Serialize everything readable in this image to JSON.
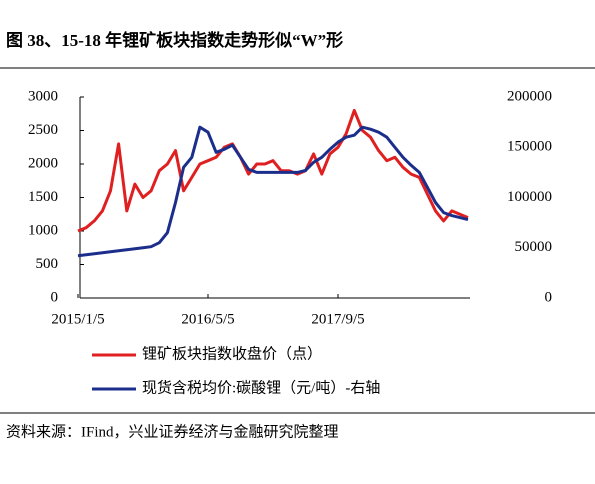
{
  "chart_data": {
    "type": "line",
    "title": "图 38、15-18 年锂矿板块指数走势形似“W”形",
    "source": "资料来源：IFind，兴业证券经济与金融研究院整理",
    "categories": [
      "2015/1/5",
      null,
      null,
      null,
      null,
      null,
      null,
      null,
      null,
      null,
      null,
      null,
      null,
      null,
      null,
      null,
      "2016/5/5",
      null,
      null,
      null,
      null,
      null,
      null,
      null,
      null,
      null,
      null,
      null,
      null,
      null,
      null,
      null,
      "2017/9/5",
      null,
      null,
      null,
      null,
      null,
      null,
      null,
      null,
      null,
      null,
      null,
      null,
      null,
      null,
      null,
      null
    ],
    "ylim": [
      0,
      3000
    ],
    "yticks": [
      0,
      500,
      1000,
      1500,
      2000,
      2500,
      3000
    ],
    "y2lim": [
      0,
      200000
    ],
    "y2ticks": [
      0,
      50000,
      100000,
      150000,
      200000
    ],
    "series": [
      {
        "name": "锂矿板块指数收盘价（点）",
        "color": "#e02020",
        "values": [
          1000,
          1050,
          1150,
          1300,
          1600,
          2300,
          1300,
          1700,
          1500,
          1600,
          1900,
          2000,
          2200,
          1600,
          1800,
          2000,
          2050,
          2100,
          2250,
          2300,
          2100,
          1850,
          2000,
          2000,
          2050,
          1900,
          1900,
          1850,
          1900,
          2150,
          1850,
          2150,
          2250,
          2450,
          2800,
          2500,
          2400,
          2200,
          2050,
          2100,
          1950,
          1850,
          1800,
          1550,
          1300,
          1150,
          1300,
          1250,
          1200
        ]
      },
      {
        "name": "现货含税均价:碳酸锂（元/吨）-右轴",
        "color": "#1c2e8c",
        "axis": "y2",
        "values": [
          42000,
          43000,
          44000,
          45000,
          46000,
          47000,
          48000,
          49000,
          50000,
          51000,
          55000,
          65000,
          95000,
          130000,
          140000,
          170000,
          165000,
          145000,
          148000,
          152000,
          140000,
          128000,
          125000,
          125000,
          125000,
          125000,
          125000,
          125000,
          127000,
          135000,
          140000,
          148000,
          155000,
          160000,
          162000,
          170000,
          168000,
          165000,
          160000,
          150000,
          140000,
          132000,
          125000,
          110000,
          95000,
          85000,
          82000,
          80000,
          78000
        ]
      }
    ]
  }
}
